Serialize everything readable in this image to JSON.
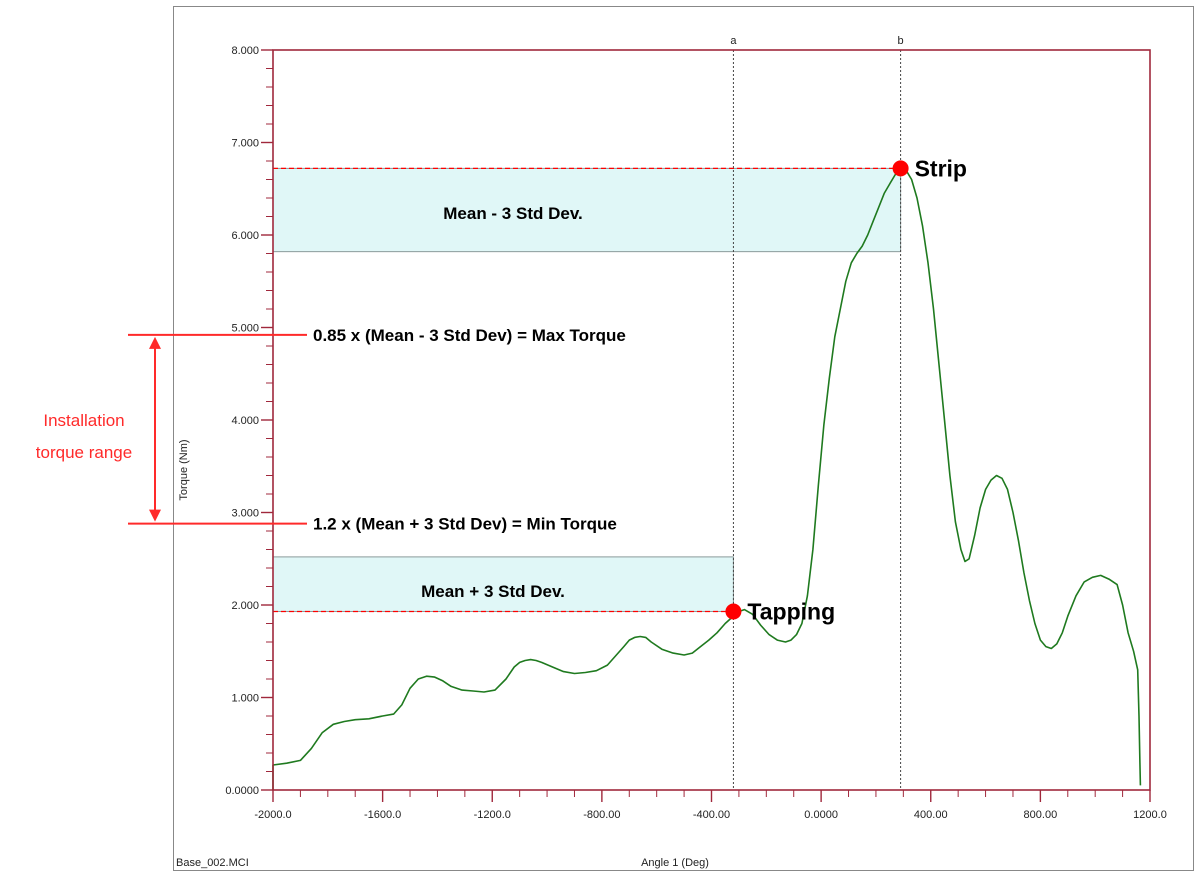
{
  "chart_data": {
    "type": "line",
    "xlabel": "Angle 1 (Deg)",
    "ylabel": "Torque (Nm)",
    "file_label": "Base_002.MCI",
    "xlim": [
      -2000,
      1200
    ],
    "ylim": [
      0,
      8
    ],
    "x_ticks": [
      -2000,
      -1600,
      -1200,
      -800,
      -400,
      0,
      400,
      800,
      1200
    ],
    "x_tick_labels": [
      "-2000.0",
      "-1600.0",
      "-1200.0",
      "-800.00",
      "-400.00",
      "0.0000",
      "400.00",
      "800.00",
      "1200.0"
    ],
    "y_ticks": [
      0,
      1,
      2,
      3,
      4,
      5,
      6,
      7,
      8
    ],
    "y_tick_labels": [
      "0.0000",
      "1.000",
      "2.000",
      "3.000",
      "4.000",
      "5.000",
      "6.000",
      "7.000",
      "8.000"
    ],
    "grid": false,
    "series": [
      {
        "color": "#1f7a1f",
        "x": [
          -2000,
          -1950,
          -1900,
          -1860,
          -1820,
          -1780,
          -1740,
          -1700,
          -1650,
          -1600,
          -1560,
          -1530,
          -1500,
          -1470,
          -1440,
          -1410,
          -1380,
          -1350,
          -1310,
          -1270,
          -1230,
          -1190,
          -1150,
          -1120,
          -1100,
          -1080,
          -1060,
          -1040,
          -1020,
          -980,
          -940,
          -900,
          -860,
          -820,
          -780,
          -750,
          -720,
          -700,
          -680,
          -660,
          -640,
          -620,
          -580,
          -540,
          -500,
          -470,
          -440,
          -410,
          -380,
          -350,
          -320,
          -300,
          -280,
          -250,
          -220,
          -190,
          -160,
          -130,
          -110,
          -90,
          -70,
          -50,
          -30,
          -10,
          10,
          30,
          50,
          70,
          90,
          110,
          130,
          150,
          170,
          190,
          210,
          230,
          250,
          270,
          290,
          310,
          330,
          350,
          370,
          390,
          410,
          430,
          450,
          470,
          490,
          510,
          525,
          540,
          560,
          580,
          600,
          620,
          640,
          660,
          680,
          700,
          720,
          740,
          760,
          780,
          800,
          820,
          840,
          860,
          880,
          900,
          930,
          960,
          990,
          1020,
          1050,
          1080,
          1100,
          1120,
          1140,
          1155,
          1160,
          1163,
          1165
        ],
        "y": [
          0.27,
          0.29,
          0.32,
          0.45,
          0.62,
          0.71,
          0.74,
          0.76,
          0.77,
          0.8,
          0.82,
          0.92,
          1.1,
          1.2,
          1.23,
          1.22,
          1.18,
          1.12,
          1.08,
          1.07,
          1.06,
          1.08,
          1.2,
          1.33,
          1.38,
          1.4,
          1.41,
          1.4,
          1.38,
          1.33,
          1.28,
          1.26,
          1.27,
          1.29,
          1.35,
          1.45,
          1.55,
          1.62,
          1.65,
          1.66,
          1.65,
          1.6,
          1.52,
          1.48,
          1.46,
          1.48,
          1.55,
          1.62,
          1.7,
          1.8,
          1.88,
          1.93,
          1.95,
          1.9,
          1.78,
          1.68,
          1.62,
          1.6,
          1.62,
          1.68,
          1.8,
          2.1,
          2.6,
          3.3,
          3.95,
          4.45,
          4.9,
          5.2,
          5.5,
          5.7,
          5.8,
          5.88,
          6.0,
          6.15,
          6.3,
          6.45,
          6.55,
          6.65,
          6.72,
          6.7,
          6.6,
          6.4,
          6.1,
          5.7,
          5.2,
          4.6,
          4.0,
          3.4,
          2.9,
          2.6,
          2.47,
          2.5,
          2.75,
          3.05,
          3.25,
          3.35,
          3.4,
          3.37,
          3.25,
          3.0,
          2.7,
          2.35,
          2.05,
          1.8,
          1.62,
          1.55,
          1.53,
          1.58,
          1.7,
          1.88,
          2.1,
          2.25,
          2.3,
          2.32,
          2.28,
          2.22,
          2.0,
          1.7,
          1.5,
          1.3,
          0.8,
          0.3,
          0.05
        ]
      }
    ],
    "markers": [
      {
        "label": "a",
        "x": -320
      },
      {
        "label": "b",
        "x": 290
      }
    ],
    "points": [
      {
        "label": "Tapping",
        "x": -320,
        "y": 1.93,
        "color": "#ff0000"
      },
      {
        "label": "Strip",
        "x": 290,
        "y": 6.72,
        "color": "#ff0000"
      }
    ],
    "bands": [
      {
        "label": "Mean - 3 Std Dev.",
        "x_from": -2000,
        "x_to": 290,
        "y_from": 5.82,
        "y_to": 6.72,
        "fill": "#e0f7f7"
      },
      {
        "label": "Mean + 3 Std Dev.",
        "x_from": -2000,
        "x_to": -320,
        "y_from": 1.93,
        "y_to": 2.52,
        "fill": "#e0f7f7"
      }
    ],
    "annotations": {
      "max_torque": "0.85 x (Mean - 3 Std Dev)  = Max Torque",
      "min_torque": "1.2 x (Mean + 3 Std Dev) = Min Torque",
      "max_torque_y": 4.92,
      "min_torque_y": 2.88,
      "range_label_lines": [
        "Installation",
        "torque range"
      ],
      "range_color": "#ff2a2a"
    }
  }
}
